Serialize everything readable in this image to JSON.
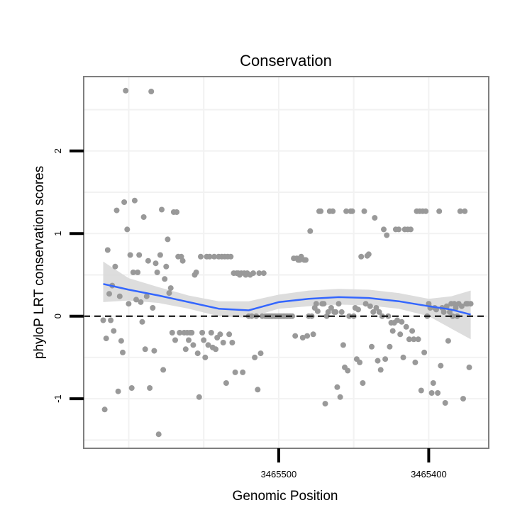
{
  "chart_data": {
    "type": "scatter",
    "title": "Conservation",
    "xlabel": "Genomic Position",
    "ylabel": "phyloP LRT conservation scores",
    "xlim": [
      3465630,
      3465360
    ],
    "ylim": [
      -1.6,
      2.9
    ],
    "x_reversed": true,
    "xticks": [
      3465500,
      3465400
    ],
    "yticks": [
      -1,
      0,
      1,
      2
    ],
    "grid": true,
    "reference_line": {
      "y": 0,
      "style": "dashed"
    },
    "colors": {
      "points": "#999999",
      "smooth": "#3366ff",
      "ribbon": "#d9d9d9",
      "panel_border": "#7f7f7f",
      "grid": "#f2f2f2"
    },
    "points": [
      {
        "x": 3465617,
        "y": -0.05
      },
      {
        "x": 3465616,
        "y": -1.13
      },
      {
        "x": 3465615,
        "y": -0.27
      },
      {
        "x": 3465614,
        "y": 0.8
      },
      {
        "x": 3465613,
        "y": 0.27
      },
      {
        "x": 3465612,
        "y": -0.05
      },
      {
        "x": 3465611,
        "y": 0.37
      },
      {
        "x": 3465610,
        "y": -0.18
      },
      {
        "x": 3465609,
        "y": 0.6
      },
      {
        "x": 3465608,
        "y": 1.28
      },
      {
        "x": 3465607,
        "y": -0.91
      },
      {
        "x": 3465606,
        "y": 0.24
      },
      {
        "x": 3465605,
        "y": -0.3
      },
      {
        "x": 3465604,
        "y": -0.44
      },
      {
        "x": 3465603,
        "y": 1.38
      },
      {
        "x": 3465602,
        "y": 2.73
      },
      {
        "x": 3465601,
        "y": 1.05
      },
      {
        "x": 3465600,
        "y": 0.15
      },
      {
        "x": 3465599,
        "y": 0.74
      },
      {
        "x": 3465598,
        "y": -0.87
      },
      {
        "x": 3465597,
        "y": 0.53
      },
      {
        "x": 3465596,
        "y": 1.4
      },
      {
        "x": 3465595,
        "y": 0.2
      },
      {
        "x": 3465594,
        "y": 0.53
      },
      {
        "x": 3465593,
        "y": 0.74
      },
      {
        "x": 3465592,
        "y": 0.17
      },
      {
        "x": 3465591,
        "y": -0.07
      },
      {
        "x": 3465590,
        "y": 1.2
      },
      {
        "x": 3465589,
        "y": -0.4
      },
      {
        "x": 3465588,
        "y": 0.24
      },
      {
        "x": 3465587,
        "y": 0.67
      },
      {
        "x": 3465586,
        "y": -0.87
      },
      {
        "x": 3465585,
        "y": 2.72
      },
      {
        "x": 3465584,
        "y": 0.1
      },
      {
        "x": 3465583,
        "y": -0.42
      },
      {
        "x": 3465582,
        "y": 0.64
      },
      {
        "x": 3465581,
        "y": 0.53
      },
      {
        "x": 3465580,
        "y": -1.43
      },
      {
        "x": 3465579,
        "y": 0.74
      },
      {
        "x": 3465578,
        "y": 1.29
      },
      {
        "x": 3465577,
        "y": -0.65
      },
      {
        "x": 3465576,
        "y": 0.45
      },
      {
        "x": 3465575,
        "y": 0.6
      },
      {
        "x": 3465574,
        "y": 0.93
      },
      {
        "x": 3465573,
        "y": 0.28
      },
      {
        "x": 3465572,
        "y": 0.34
      },
      {
        "x": 3465571,
        "y": -0.2
      },
      {
        "x": 3465570,
        "y": 1.26
      },
      {
        "x": 3465569,
        "y": -0.29
      },
      {
        "x": 3465568,
        "y": 1.26
      },
      {
        "x": 3465567,
        "y": 0.72
      },
      {
        "x": 3465566,
        "y": -0.2
      },
      {
        "x": 3465565,
        "y": 0.72
      },
      {
        "x": 3465564,
        "y": 0.67
      },
      {
        "x": 3465563,
        "y": -0.2
      },
      {
        "x": 3465562,
        "y": -0.4
      },
      {
        "x": 3465561,
        "y": -0.2
      },
      {
        "x": 3465560,
        "y": -0.29
      },
      {
        "x": 3465559,
        "y": -0.2
      },
      {
        "x": 3465558,
        "y": -0.2
      },
      {
        "x": 3465557,
        "y": -0.35
      },
      {
        "x": 3465556,
        "y": 0.5
      },
      {
        "x": 3465555,
        "y": 0.53
      },
      {
        "x": 3465554,
        "y": -0.45
      },
      {
        "x": 3465553,
        "y": -0.98
      },
      {
        "x": 3465552,
        "y": 0.72
      },
      {
        "x": 3465551,
        "y": -0.2
      },
      {
        "x": 3465550,
        "y": -0.29
      },
      {
        "x": 3465549,
        "y": -0.5
      },
      {
        "x": 3465548,
        "y": 0.72
      },
      {
        "x": 3465547,
        "y": -0.35
      },
      {
        "x": 3465546,
        "y": 0.72
      },
      {
        "x": 3465545,
        "y": -0.2
      },
      {
        "x": 3465544,
        "y": -0.38
      },
      {
        "x": 3465543,
        "y": 0.72
      },
      {
        "x": 3465542,
        "y": -0.4
      },
      {
        "x": 3465541,
        "y": -0.26
      },
      {
        "x": 3465540,
        "y": 0.72
      },
      {
        "x": 3465539,
        "y": -0.22
      },
      {
        "x": 3465538,
        "y": 0.72
      },
      {
        "x": 3465537,
        "y": -0.32
      },
      {
        "x": 3465536,
        "y": 0.72
      },
      {
        "x": 3465535,
        "y": -0.81
      },
      {
        "x": 3465534,
        "y": 0.72
      },
      {
        "x": 3465533,
        "y": -0.22
      },
      {
        "x": 3465532,
        "y": 0.72
      },
      {
        "x": 3465531,
        "y": -0.32
      },
      {
        "x": 3465530,
        "y": 0.52
      },
      {
        "x": 3465529,
        "y": -0.68
      },
      {
        "x": 3465528,
        "y": 0.52
      },
      {
        "x": 3465527,
        "y": 0.52
      },
      {
        "x": 3465526,
        "y": 0.5
      },
      {
        "x": 3465525,
        "y": 0.52
      },
      {
        "x": 3465524,
        "y": -0.68
      },
      {
        "x": 3465523,
        "y": 0.52
      },
      {
        "x": 3465522,
        "y": 0.5
      },
      {
        "x": 3465521,
        "y": 0.52
      },
      {
        "x": 3465520,
        "y": 0.0
      },
      {
        "x": 3465519,
        "y": 0.5
      },
      {
        "x": 3465518,
        "y": 0.0
      },
      {
        "x": 3465517,
        "y": 0.52
      },
      {
        "x": 3465516,
        "y": -0.5
      },
      {
        "x": 3465515,
        "y": 0.0
      },
      {
        "x": 3465514,
        "y": -0.89
      },
      {
        "x": 3465513,
        "y": 0.52
      },
      {
        "x": 3465512,
        "y": -0.45
      },
      {
        "x": 3465511,
        "y": 0.0
      },
      {
        "x": 3465510,
        "y": 0.52
      },
      {
        "x": 3465509,
        "y": 0.0
      },
      {
        "x": 3465508,
        "y": 0.0
      },
      {
        "x": 3465507,
        "y": 0.0
      },
      {
        "x": 3465506,
        "y": 0.0
      },
      {
        "x": 3465505,
        "y": 0.0
      },
      {
        "x": 3465504,
        "y": 0.0
      },
      {
        "x": 3465503,
        "y": 0.0
      },
      {
        "x": 3465502,
        "y": 0.0
      },
      {
        "x": 3465501,
        "y": 0.0
      },
      {
        "x": 3465500,
        "y": 0.0
      },
      {
        "x": 3465499,
        "y": 0.0
      },
      {
        "x": 3465498,
        "y": 0.0
      },
      {
        "x": 3465497,
        "y": 0.0
      },
      {
        "x": 3465496,
        "y": 0.0
      },
      {
        "x": 3465495,
        "y": 0.0
      },
      {
        "x": 3465494,
        "y": 0.0
      },
      {
        "x": 3465493,
        "y": 0.0
      },
      {
        "x": 3465492,
        "y": 0.0
      },
      {
        "x": 3465491,
        "y": 0.0
      },
      {
        "x": 3465490,
        "y": 0.7
      },
      {
        "x": 3465489,
        "y": -0.24
      },
      {
        "x": 3465488,
        "y": 0.7
      },
      {
        "x": 3465487,
        "y": 0.68
      },
      {
        "x": 3465486,
        "y": 0.68
      },
      {
        "x": 3465485,
        "y": 0.72
      },
      {
        "x": 3465484,
        "y": -0.26
      },
      {
        "x": 3465483,
        "y": 0.68
      },
      {
        "x": 3465482,
        "y": 0.68
      },
      {
        "x": 3465481,
        "y": -0.24
      },
      {
        "x": 3465480,
        "y": 0.0
      },
      {
        "x": 3465479,
        "y": 1.03
      },
      {
        "x": 3465478,
        "y": 0.0
      },
      {
        "x": 3465477,
        "y": -0.22
      },
      {
        "x": 3465476,
        "y": 0.1
      },
      {
        "x": 3465475,
        "y": 0.15
      },
      {
        "x": 3465474,
        "y": 0.06
      },
      {
        "x": 3465473,
        "y": 1.27
      },
      {
        "x": 3465472,
        "y": 1.27
      },
      {
        "x": 3465471,
        "y": 0.15
      },
      {
        "x": 3465470,
        "y": 0.15
      },
      {
        "x": 3465469,
        "y": -1.06
      },
      {
        "x": 3465468,
        "y": 0.0
      },
      {
        "x": 3465467,
        "y": 0.05
      },
      {
        "x": 3465466,
        "y": 1.27
      },
      {
        "x": 3465465,
        "y": 0.1
      },
      {
        "x": 3465464,
        "y": 1.27
      },
      {
        "x": 3465463,
        "y": 0.05
      },
      {
        "x": 3465462,
        "y": 0.05
      },
      {
        "x": 3465461,
        "y": -0.86
      },
      {
        "x": 3465460,
        "y": 0.15
      },
      {
        "x": 3465459,
        "y": -0.98
      },
      {
        "x": 3465458,
        "y": 0.05
      },
      {
        "x": 3465457,
        "y": -0.35
      },
      {
        "x": 3465456,
        "y": -0.62
      },
      {
        "x": 3465455,
        "y": 1.27
      },
      {
        "x": 3465454,
        "y": -0.66
      },
      {
        "x": 3465453,
        "y": 0.0
      },
      {
        "x": 3465452,
        "y": 1.27
      },
      {
        "x": 3465451,
        "y": 1.27
      },
      {
        "x": 3465450,
        "y": 0.0
      },
      {
        "x": 3465449,
        "y": 0.1
      },
      {
        "x": 3465448,
        "y": -0.52
      },
      {
        "x": 3465447,
        "y": 0.08
      },
      {
        "x": 3465446,
        "y": -0.56
      },
      {
        "x": 3465445,
        "y": 0.72
      },
      {
        "x": 3465444,
        "y": -0.81
      },
      {
        "x": 3465443,
        "y": 1.27
      },
      {
        "x": 3465442,
        "y": 0.15
      },
      {
        "x": 3465441,
        "y": 0.73
      },
      {
        "x": 3465440,
        "y": 0.75
      },
      {
        "x": 3465439,
        "y": 0.12
      },
      {
        "x": 3465438,
        "y": -0.37
      },
      {
        "x": 3465437,
        "y": 0.05
      },
      {
        "x": 3465436,
        "y": 1.19
      },
      {
        "x": 3465435,
        "y": 0.1
      },
      {
        "x": 3465434,
        "y": -0.54
      },
      {
        "x": 3465433,
        "y": 0.05
      },
      {
        "x": 3465432,
        "y": -0.65
      },
      {
        "x": 3465431,
        "y": 0.0
      },
      {
        "x": 3465430,
        "y": 1.05
      },
      {
        "x": 3465429,
        "y": -0.52
      },
      {
        "x": 3465428,
        "y": 0.98
      },
      {
        "x": 3465427,
        "y": 0.0
      },
      {
        "x": 3465426,
        "y": -0.37
      },
      {
        "x": 3465425,
        "y": -0.08
      },
      {
        "x": 3465424,
        "y": -0.18
      },
      {
        "x": 3465423,
        "y": -0.08
      },
      {
        "x": 3465422,
        "y": 1.05
      },
      {
        "x": 3465421,
        "y": -0.05
      },
      {
        "x": 3465420,
        "y": 1.05
      },
      {
        "x": 3465419,
        "y": -0.22
      },
      {
        "x": 3465418,
        "y": -0.07
      },
      {
        "x": 3465417,
        "y": -0.5
      },
      {
        "x": 3465416,
        "y": 1.05
      },
      {
        "x": 3465415,
        "y": -0.13
      },
      {
        "x": 3465414,
        "y": 1.05
      },
      {
        "x": 3465413,
        "y": -0.28
      },
      {
        "x": 3465412,
        "y": 1.05
      },
      {
        "x": 3465411,
        "y": -0.18
      },
      {
        "x": 3465410,
        "y": -0.28
      },
      {
        "x": 3465409,
        "y": -0.56
      },
      {
        "x": 3465408,
        "y": 1.27
      },
      {
        "x": 3465407,
        "y": -0.28
      },
      {
        "x": 3465406,
        "y": 1.27
      },
      {
        "x": 3465405,
        "y": -0.9
      },
      {
        "x": 3465404,
        "y": 1.27
      },
      {
        "x": 3465403,
        "y": -0.44
      },
      {
        "x": 3465402,
        "y": 1.27
      },
      {
        "x": 3465401,
        "y": 0.0
      },
      {
        "x": 3465400,
        "y": 0.15
      },
      {
        "x": 3465399,
        "y": 0.1
      },
      {
        "x": 3465398,
        "y": -0.93
      },
      {
        "x": 3465397,
        "y": -0.81
      },
      {
        "x": 3465396,
        "y": 0.1
      },
      {
        "x": 3465395,
        "y": 0.08
      },
      {
        "x": 3465394,
        "y": -0.93
      },
      {
        "x": 3465393,
        "y": 1.27
      },
      {
        "x": 3465392,
        "y": -0.6
      },
      {
        "x": 3465391,
        "y": 0.1
      },
      {
        "x": 3465390,
        "y": 0.05
      },
      {
        "x": 3465389,
        "y": -1.05
      },
      {
        "x": 3465388,
        "y": 0.12
      },
      {
        "x": 3465387,
        "y": -0.3
      },
      {
        "x": 3465386,
        "y": 0.05
      },
      {
        "x": 3465385,
        "y": 0.15
      },
      {
        "x": 3465384,
        "y": 0.0
      },
      {
        "x": 3465383,
        "y": 0.15
      },
      {
        "x": 3465382,
        "y": 0.1
      },
      {
        "x": 3465381,
        "y": 0.0
      },
      {
        "x": 3465380,
        "y": 0.15
      },
      {
        "x": 3465379,
        "y": 1.27
      },
      {
        "x": 3465378,
        "y": 0.12
      },
      {
        "x": 3465377,
        "y": -1.0
      },
      {
        "x": 3465376,
        "y": 1.27
      },
      {
        "x": 3465375,
        "y": 0.15
      },
      {
        "x": 3465374,
        "y": 0.15
      },
      {
        "x": 3465373,
        "y": -0.62
      },
      {
        "x": 3465372,
        "y": 0.15
      }
    ],
    "smooth": {
      "x": [
        3465617,
        3465600,
        3465580,
        3465560,
        3465540,
        3465520,
        3465500,
        3465480,
        3465460,
        3465440,
        3465420,
        3465400,
        3465385,
        3465372
      ],
      "y": [
        0.39,
        0.32,
        0.25,
        0.17,
        0.09,
        0.07,
        0.17,
        0.21,
        0.23,
        0.22,
        0.18,
        0.12,
        0.08,
        0.02
      ],
      "lower": [
        0.17,
        0.19,
        0.16,
        0.09,
        0.0,
        -0.02,
        0.09,
        0.12,
        0.14,
        0.13,
        0.09,
        0.0,
        -0.15,
        -0.28
      ],
      "upper": [
        0.66,
        0.46,
        0.35,
        0.25,
        0.18,
        0.18,
        0.26,
        0.31,
        0.33,
        0.32,
        0.28,
        0.21,
        0.24,
        0.31
      ]
    }
  }
}
